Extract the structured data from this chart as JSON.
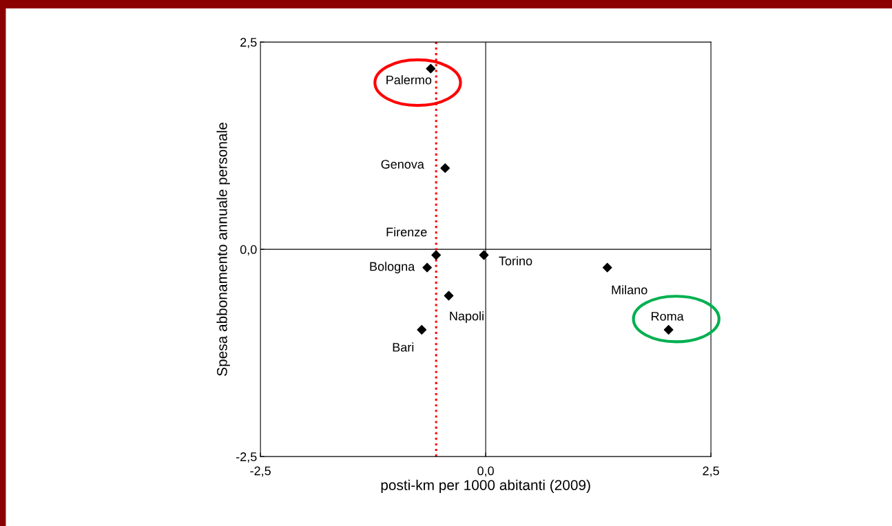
{
  "chart_data": {
    "type": "scatter",
    "xlabel": "posti-km per 1000 abitanti (2009)",
    "ylabel": "Spesa abbonamento annuale personale",
    "x": [
      -0.61,
      -0.45,
      -0.55,
      -0.65,
      -0.02,
      -0.41,
      -0.71,
      1.35,
      2.03
    ],
    "series": [
      {
        "color": "#000000",
        "values": [
          2.18,
          0.98,
          -0.07,
          -0.22,
          -0.07,
          -0.56,
          -0.97,
          -0.22,
          -0.97
        ]
      }
    ],
    "marker": "diamond",
    "grid": false,
    "legend": false,
    "xlim": [
      -2.5,
      2.5
    ],
    "ylim": [
      -2.5,
      2.5
    ],
    "xticks": [
      {
        "value": -2.5,
        "label": "-2,5"
      },
      {
        "value": 0,
        "label": "0,0"
      },
      {
        "value": 2.5,
        "label": "2,5"
      }
    ],
    "yticks": [
      {
        "value": -2.5,
        "label": "-2,5"
      },
      {
        "value": 0,
        "label": "0,0"
      },
      {
        "value": 2.5,
        "label": "2,5"
      }
    ],
    "ref_lines": [
      {
        "axis": "x",
        "value": 0,
        "color": "#000000",
        "line_style": "solid"
      },
      {
        "axis": "y",
        "value": 0,
        "color": "#000000",
        "line_style": "solid"
      },
      {
        "axis": "x",
        "value": -0.55,
        "color": "#ff0000",
        "line_style": "dotted"
      }
    ],
    "annotations": [
      {
        "text": "Palermo",
        "x": -0.61,
        "y": 2.18
      },
      {
        "text": "Genova",
        "x": -0.45,
        "y": 0.98
      },
      {
        "text": "Firenze",
        "x": -0.55,
        "y": -0.07
      },
      {
        "text": "Bologna",
        "x": -0.65,
        "y": -0.22
      },
      {
        "text": "Torino",
        "x": -0.02,
        "y": -0.07
      },
      {
        "text": "Napoli",
        "x": -0.41,
        "y": -0.56
      },
      {
        "text": "Bari",
        "x": -0.71,
        "y": -0.97
      },
      {
        "text": "Milano",
        "x": 1.35,
        "y": -0.22
      },
      {
        "text": "Roma",
        "x": 2.03,
        "y": -0.97
      }
    ]
  }
}
